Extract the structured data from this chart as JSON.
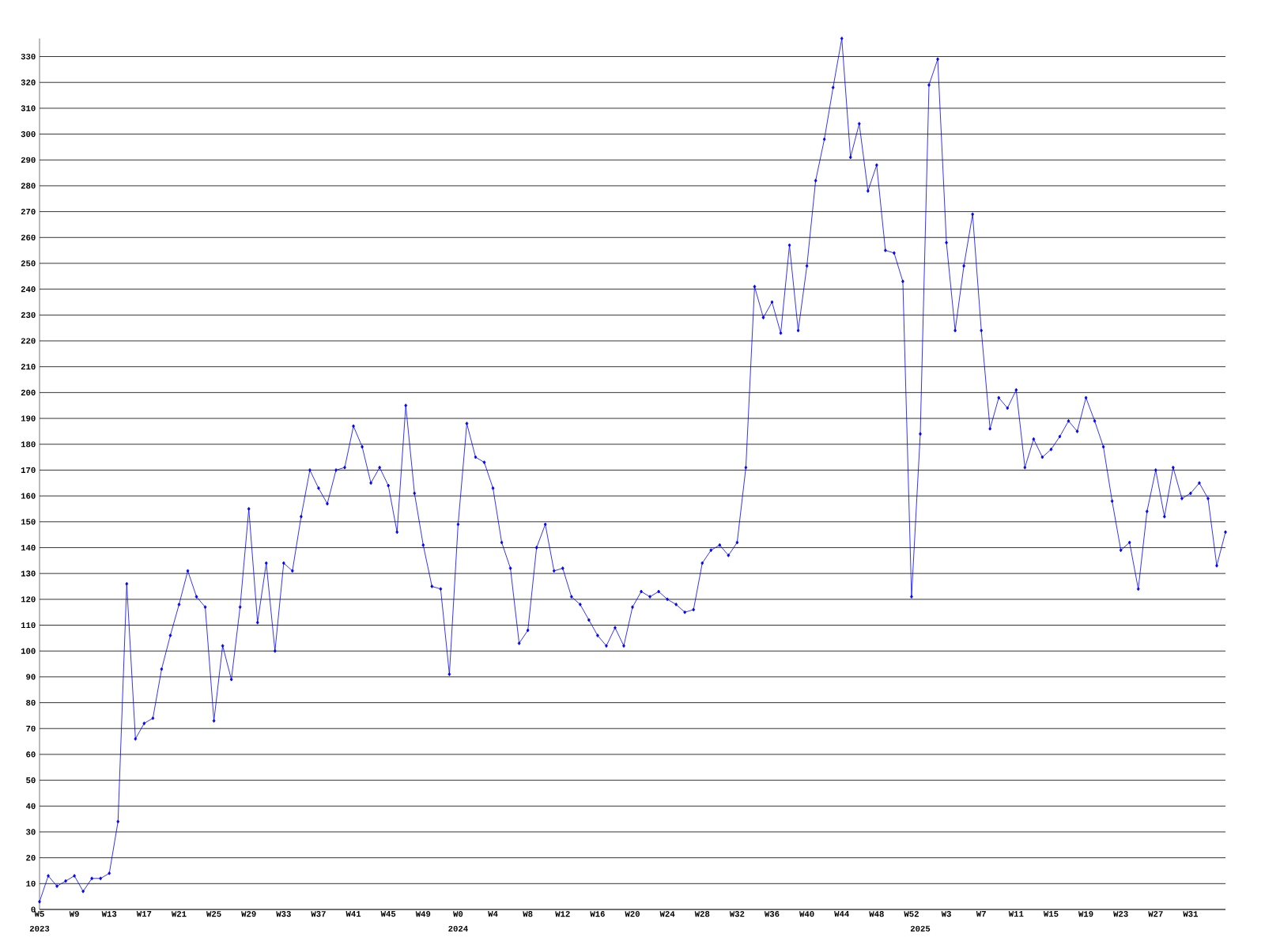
{
  "chart_data": {
    "type": "line",
    "categories": [
      "W5",
      null,
      null,
      null,
      "W9",
      null,
      null,
      null,
      "W13",
      null,
      null,
      null,
      "W17",
      null,
      null,
      null,
      "W21",
      null,
      null,
      null,
      "W25",
      null,
      null,
      null,
      "W29",
      null,
      null,
      null,
      "W33",
      null,
      null,
      null,
      "W37",
      null,
      null,
      null,
      "W41",
      null,
      null,
      null,
      "W45",
      null,
      null,
      null,
      "W49",
      null,
      null,
      null,
      "W0",
      null,
      null,
      null,
      "W4",
      null,
      null,
      null,
      "W8",
      null,
      null,
      null,
      "W12",
      null,
      null,
      null,
      "W16",
      null,
      null,
      null,
      "W20",
      null,
      null,
      null,
      "W24",
      null,
      null,
      null,
      "W28",
      null,
      null,
      null,
      "W32",
      null,
      null,
      null,
      "W36",
      null,
      null,
      null,
      "W40",
      null,
      null,
      null,
      "W44",
      null,
      null,
      null,
      "W48",
      null,
      null,
      null,
      "W52",
      null,
      null,
      null,
      "W3",
      null,
      null,
      null,
      "W7",
      null,
      null,
      null,
      "W11",
      null,
      null,
      null,
      "W15",
      null,
      null,
      null,
      "W19",
      null,
      null,
      null,
      "W23",
      null,
      null,
      null,
      "W27",
      null,
      null,
      null,
      "W31",
      null,
      null,
      null,
      null
    ],
    "values": [
      3,
      13,
      9,
      11,
      13,
      7,
      12,
      12,
      14,
      34,
      126,
      66,
      72,
      74,
      93,
      106,
      118,
      131,
      121,
      117,
      73,
      102,
      89,
      117,
      155,
      111,
      134,
      100,
      134,
      131,
      152,
      170,
      163,
      157,
      170,
      171,
      187,
      179,
      165,
      171,
      164,
      146,
      195,
      161,
      141,
      125,
      124,
      91,
      149,
      188,
      175,
      173,
      163,
      142,
      132,
      103,
      108,
      140,
      149,
      131,
      132,
      121,
      118,
      112,
      106,
      102,
      109,
      102,
      117,
      123,
      121,
      123,
      120,
      118,
      115,
      116,
      134,
      139,
      141,
      137,
      142,
      171,
      241,
      229,
      235,
      223,
      257,
      224,
      249,
      282,
      298,
      318,
      337,
      291,
      304,
      278,
      288,
      255,
      254,
      243,
      121,
      184,
      319,
      329,
      258,
      224,
      249,
      269,
      224,
      186,
      198,
      194,
      201,
      171,
      182,
      175,
      178,
      183,
      189,
      185,
      198,
      189,
      179,
      158,
      139,
      142,
      124,
      154,
      170,
      152,
      171,
      159,
      161,
      165,
      159,
      133,
      146
    ],
    "color": "#0000ff",
    "ylim": [
      0,
      337
    ],
    "yticks": [
      0,
      10,
      20,
      30,
      40,
      50,
      60,
      70,
      80,
      90,
      100,
      110,
      120,
      130,
      140,
      150,
      160,
      170,
      180,
      190,
      200,
      210,
      220,
      230,
      240,
      250,
      260,
      270,
      280,
      290,
      300,
      310,
      320,
      330
    ],
    "grid": "y",
    "marker": "diamond",
    "line_style": "solid",
    "annotations": [
      "2023",
      "2024",
      "2025"
    ]
  }
}
